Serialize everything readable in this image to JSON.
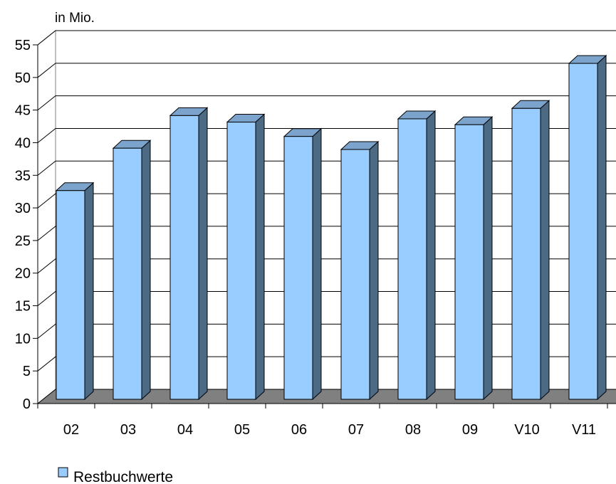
{
  "chart_data": {
    "type": "bar",
    "unit_label": "in Mio.",
    "categories": [
      "02",
      "03",
      "04",
      "05",
      "06",
      "07",
      "08",
      "09",
      "V10",
      "V11"
    ],
    "series": [
      {
        "name": "Restbuchwerte",
        "values": [
          32,
          38.5,
          43.5,
          42.5,
          40.3,
          38.3,
          43,
          42.1,
          44.6,
          51.5
        ]
      }
    ],
    "ylim": [
      0,
      55
    ],
    "yticks": [
      0,
      5,
      10,
      15,
      20,
      25,
      30,
      35,
      40,
      45,
      50,
      55
    ],
    "grid": true,
    "legend_position": "bottom-left",
    "colors": {
      "bar_front": "#99ccff",
      "bar_side": "#4d6a85",
      "bar_top": "#7ba3cc",
      "floor": "#808080",
      "edge": "#000000"
    }
  }
}
